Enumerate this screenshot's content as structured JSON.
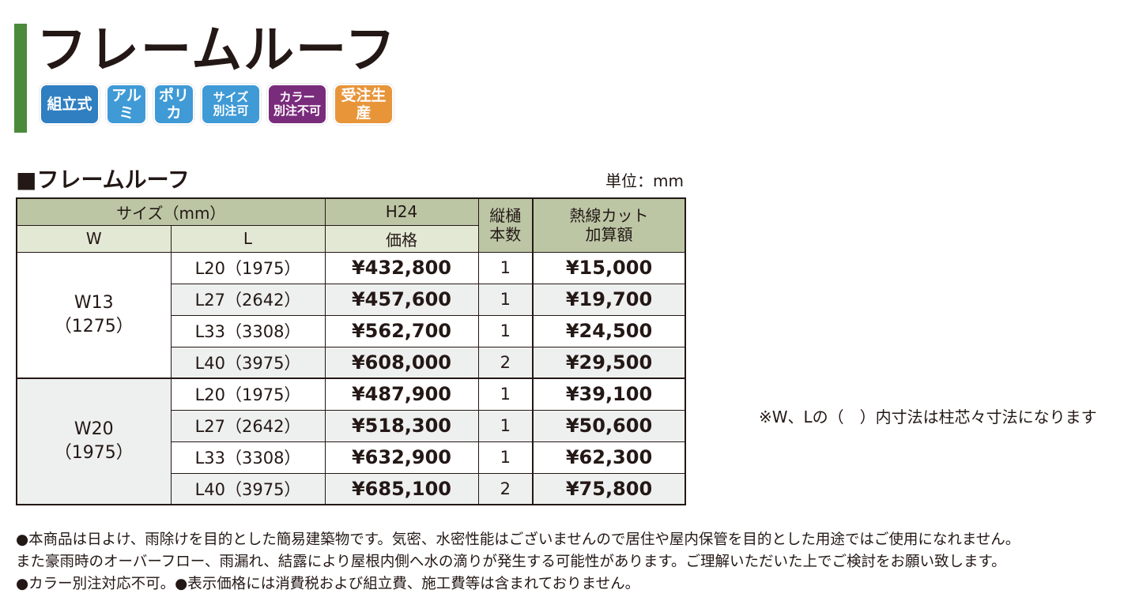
{
  "title": "フレームルーフ",
  "badges": [
    {
      "label": "組立式",
      "color": "#2f7fc1",
      "size": "one",
      "width": 76
    },
    {
      "label": "アルミ",
      "color": "#3f9ad6",
      "size": "one",
      "width": 52
    },
    {
      "label": "ポリカ",
      "color": "#3f9ad6",
      "size": "one",
      "width": 52
    },
    {
      "label": "サイズ\n別注可",
      "color": "#3f9ad6",
      "size": "two",
      "width": 76
    },
    {
      "label": "カラー\n別注不可",
      "color": "#7a2c7c",
      "size": "two",
      "width": 76
    },
    {
      "label": "受注生産",
      "color": "#e8953a",
      "size": "one",
      "width": 76
    }
  ],
  "section_title": "■フレームルーフ",
  "unit": "単位：mm",
  "table": {
    "header": {
      "size": "サイズ（mm）",
      "w": "W",
      "l": "L",
      "h": "H24",
      "price": "価格",
      "downspout": "縦樋\n本数",
      "heat_cut": "熱線カット\n加算額"
    },
    "groups": [
      {
        "w_label": "W13\n（1275）",
        "rows": [
          {
            "l": "L20（1975）",
            "price": "¥432,800",
            "count": "1",
            "extra": "¥15,000"
          },
          {
            "l": "L27（2642）",
            "price": "¥457,600",
            "count": "1",
            "extra": "¥19,700"
          },
          {
            "l": "L33（3308）",
            "price": "¥562,700",
            "count": "1",
            "extra": "¥24,500"
          },
          {
            "l": "L40（3975）",
            "price": "¥608,000",
            "count": "2",
            "extra": "¥29,500"
          }
        ]
      },
      {
        "w_label": "W20\n（1975）",
        "rows": [
          {
            "l": "L20（1975）",
            "price": "¥487,900",
            "count": "1",
            "extra": "¥39,100"
          },
          {
            "l": "L27（2642）",
            "price": "¥518,300",
            "count": "1",
            "extra": "¥50,600"
          },
          {
            "l": "L33（3308）",
            "price": "¥632,900",
            "count": "1",
            "extra": "¥62,300"
          },
          {
            "l": "L40（3975）",
            "price": "¥685,100",
            "count": "2",
            "extra": "¥75,800"
          }
        ]
      }
    ]
  },
  "note": "※W、Lの（　）内寸法は柱芯々寸法になります",
  "bottom_notes": [
    "●本商品は日よけ、雨除けを目的とした簡易建築物です。気密、水密性能はございませんので居住や屋内保管を目的とした用途ではご使用になれません。",
    "また豪雨時のオーバーフロー、雨漏れ、結露により屋根内側へ水の滴りが発生する可能性があります。ご理解いただいた上でご検討をお願い致します。",
    "●カラー別注対応不可。●表示価格には消費税および組立費、施工費等は含まれておりません。"
  ]
}
